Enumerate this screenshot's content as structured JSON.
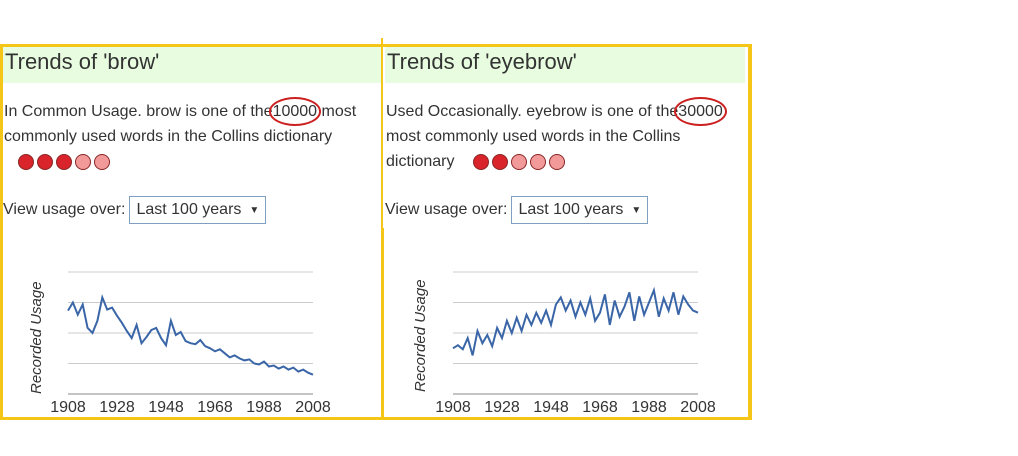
{
  "panels": [
    {
      "title": "Trends of 'brow'",
      "usage_prefix": "In Common Usage. brow is one of the",
      "rank": "10000",
      "usage_suffix": "most commonly used words in the Collins dictionary",
      "dots_on": 3,
      "dots_total": 5,
      "view_label": "View usage over:",
      "select_value": "Last 100 years",
      "y_axis_label": "Recorded Usage",
      "chart_data": {
        "type": "line",
        "x_ticks": [
          "1908",
          "1928",
          "1948",
          "1968",
          "1988",
          "2008"
        ],
        "ylabel": "Recorded Usage",
        "grid": true,
        "x": [
          1908,
          1910,
          1912,
          1914,
          1916,
          1918,
          1920,
          1922,
          1924,
          1926,
          1928,
          1930,
          1932,
          1934,
          1936,
          1938,
          1940,
          1942,
          1944,
          1946,
          1948,
          1950,
          1952,
          1954,
          1956,
          1958,
          1960,
          1962,
          1964,
          1966,
          1968,
          1970,
          1972,
          1974,
          1976,
          1978,
          1980,
          1982,
          1984,
          1986,
          1988,
          1990,
          1992,
          1994,
          1996,
          1998,
          2000,
          2002,
          2004,
          2006,
          2008
        ],
        "values": [
          0.62,
          0.7,
          0.58,
          0.68,
          0.45,
          0.4,
          0.52,
          0.75,
          0.63,
          0.65,
          0.57,
          0.5,
          0.42,
          0.35,
          0.48,
          0.3,
          0.36,
          0.43,
          0.45,
          0.35,
          0.28,
          0.52,
          0.38,
          0.41,
          0.32,
          0.3,
          0.29,
          0.33,
          0.27,
          0.25,
          0.22,
          0.24,
          0.2,
          0.16,
          0.18,
          0.15,
          0.13,
          0.14,
          0.1,
          0.09,
          0.12,
          0.07,
          0.08,
          0.05,
          0.07,
          0.04,
          0.06,
          0.02,
          0.04,
          0.01,
          -0.01
        ]
      }
    },
    {
      "title": "Trends of 'eyebrow'",
      "usage_prefix": "Used Occasionally. eyebrow is one of the",
      "rank": "30000",
      "usage_suffix": "most commonly used words in the Collins dictionary",
      "dots_on": 2,
      "dots_total": 5,
      "view_label": "View usage over:",
      "select_value": "Last 100 years",
      "y_axis_label": "Recorded Usage",
      "chart_data": {
        "type": "line",
        "x_ticks": [
          "1908",
          "1928",
          "1948",
          "1968",
          "1988",
          "2008"
        ],
        "ylabel": "Recorded Usage",
        "grid": true,
        "x": [
          1908,
          1910,
          1912,
          1914,
          1916,
          1918,
          1920,
          1922,
          1924,
          1926,
          1928,
          1930,
          1932,
          1934,
          1936,
          1938,
          1940,
          1942,
          1944,
          1946,
          1948,
          1950,
          1952,
          1954,
          1956,
          1958,
          1960,
          1962,
          1964,
          1966,
          1968,
          1970,
          1972,
          1974,
          1976,
          1978,
          1980,
          1982,
          1984,
          1986,
          1988,
          1990,
          1992,
          1994,
          1996,
          1998,
          2000,
          2002,
          2004,
          2006,
          2008
        ],
        "values": [
          0.25,
          0.28,
          0.24,
          0.35,
          0.18,
          0.42,
          0.3,
          0.38,
          0.27,
          0.45,
          0.35,
          0.52,
          0.4,
          0.55,
          0.42,
          0.58,
          0.48,
          0.6,
          0.5,
          0.62,
          0.48,
          0.68,
          0.75,
          0.62,
          0.72,
          0.56,
          0.7,
          0.58,
          0.74,
          0.52,
          0.6,
          0.78,
          0.48,
          0.72,
          0.56,
          0.66,
          0.8,
          0.52,
          0.76,
          0.58,
          0.7,
          0.82,
          0.56,
          0.74,
          0.62,
          0.8,
          0.58,
          0.76,
          0.68,
          0.62,
          0.6
        ]
      }
    }
  ]
}
